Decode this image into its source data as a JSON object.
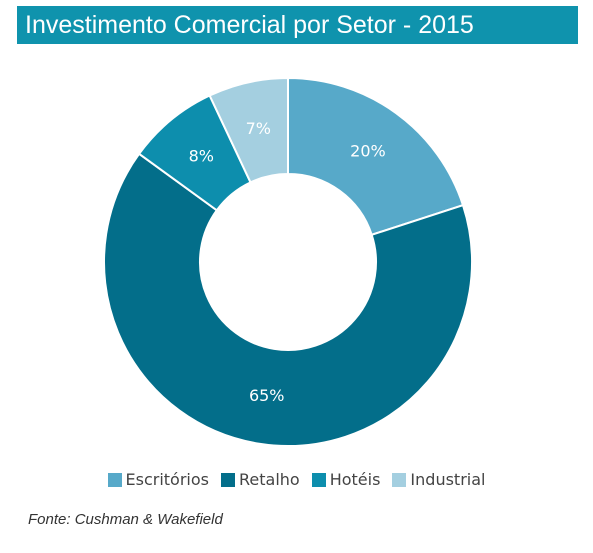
{
  "title": "Investimento Comercial por Setor - 2015",
  "source": "Fonte: Cushman & Wakefield",
  "chart_data": {
    "type": "pie",
    "variant": "donut",
    "title": "Investimento Comercial por Setor - 2015",
    "legend_position": "bottom",
    "label_color": "#ffffff",
    "slices": [
      {
        "name": "Escritórios",
        "value": 20,
        "label": "20%",
        "color": "#57a9c9"
      },
      {
        "name": "Retalho",
        "value": 65,
        "label": "65%",
        "color": "#036e8a"
      },
      {
        "name": "Hotéis",
        "value": 8,
        "label": "8%",
        "color": "#0d8ead"
      },
      {
        "name": "Industrial",
        "value": 7,
        "label": "7%",
        "color": "#a4cfe0"
      }
    ]
  }
}
